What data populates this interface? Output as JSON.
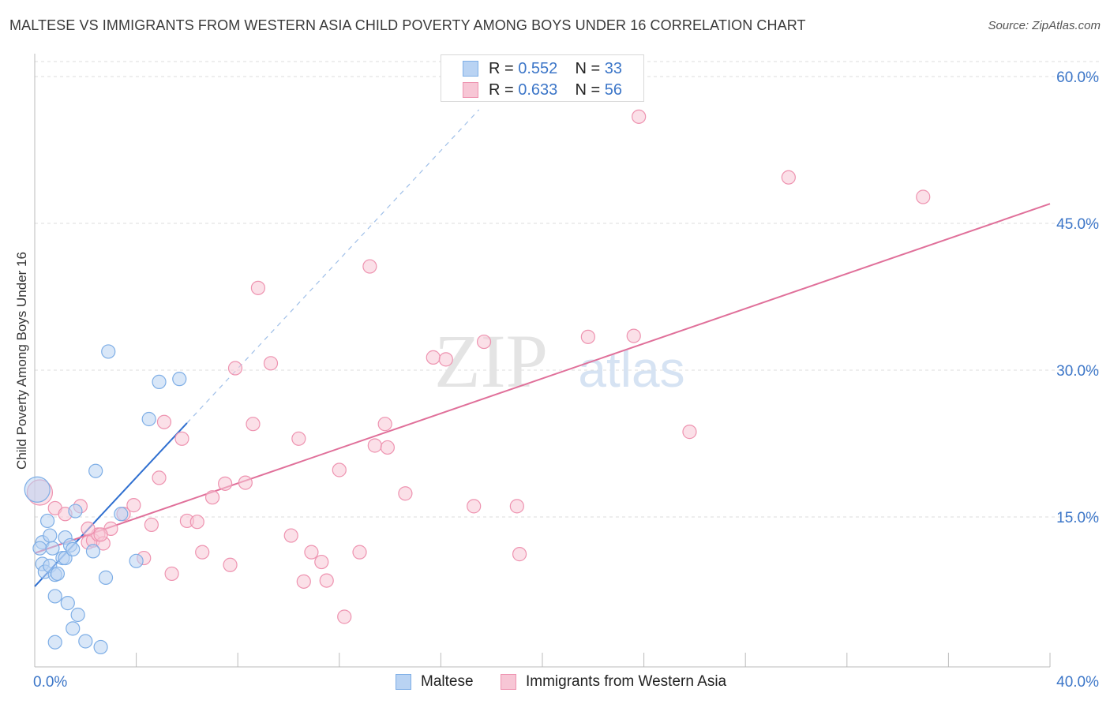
{
  "header": {
    "title": "MALTESE VS IMMIGRANTS FROM WESTERN ASIA CHILD POVERTY AMONG BOYS UNDER 16 CORRELATION CHART",
    "source": "Source: ZipAtlas.com"
  },
  "watermark": {
    "zip": "ZIP",
    "atlas": "atlas"
  },
  "legend_stats": {
    "rows": [
      {
        "r_label": "R = ",
        "r_value": "0.552",
        "n_label": "N = ",
        "n_value": "33"
      },
      {
        "r_label": "R = ",
        "r_value": "0.633",
        "n_label": "N = ",
        "n_value": "56"
      }
    ]
  },
  "legend": {
    "maltese": "Maltese",
    "western_asia": "Immigrants from Western Asia"
  },
  "colors": {
    "blue_fill": "#b9d3f3",
    "blue_stroke": "#7eaee6",
    "blue_line": "#2f6fd0",
    "pink_fill": "#f7c6d5",
    "pink_stroke": "#ee93b0",
    "pink_line": "#e0709a",
    "axis_label": "#3c76c8",
    "grid": "#dddddd"
  },
  "chart_data": {
    "type": "scatter",
    "title": "MALTESE VS IMMIGRANTS FROM WESTERN ASIA CHILD POVERTY AMONG BOYS UNDER 16 CORRELATION CHART",
    "xlabel": "",
    "ylabel": "Child Poverty Among Boys Under 16",
    "xlim": [
      0,
      40
    ],
    "ylim": [
      0,
      63
    ],
    "x_tick_labels": [
      {
        "value": 0,
        "label": "0.0%"
      },
      {
        "value": 40,
        "label": "40.0%"
      }
    ],
    "y_tick_labels": [
      {
        "value": 15,
        "label": "15.0%"
      },
      {
        "value": 30,
        "label": "30.0%"
      },
      {
        "value": 45,
        "label": "45.0%"
      },
      {
        "value": 60,
        "label": "60.0%"
      }
    ],
    "x_minor_ticks": [
      0,
      4,
      8,
      12,
      16,
      20,
      24,
      28,
      32,
      36,
      40
    ],
    "grid": true,
    "legend_position": "bottom",
    "series": [
      {
        "name": "Maltese",
        "r": 0.552,
        "n": 33,
        "trend": {
          "x0": 0,
          "y0": 7.9,
          "x1": 6.0,
          "y1": 24.6,
          "dashed_to_x": 17.5
        },
        "points": [
          {
            "x": 0.1,
            "y": 17.8,
            "big": true
          },
          {
            "x": 0.3,
            "y": 12.4
          },
          {
            "x": 0.2,
            "y": 11.8
          },
          {
            "x": 0.3,
            "y": 10.2
          },
          {
            "x": 0.4,
            "y": 9.4
          },
          {
            "x": 0.5,
            "y": 14.6
          },
          {
            "x": 0.6,
            "y": 13.1
          },
          {
            "x": 0.7,
            "y": 11.8
          },
          {
            "x": 0.6,
            "y": 10.0
          },
          {
            "x": 0.8,
            "y": 9.1
          },
          {
            "x": 0.9,
            "y": 9.2
          },
          {
            "x": 0.8,
            "y": 6.9
          },
          {
            "x": 0.8,
            "y": 2.2
          },
          {
            "x": 1.1,
            "y": 10.8
          },
          {
            "x": 1.2,
            "y": 10.8
          },
          {
            "x": 1.2,
            "y": 12.9
          },
          {
            "x": 1.3,
            "y": 6.2
          },
          {
            "x": 1.4,
            "y": 12.1
          },
          {
            "x": 1.5,
            "y": 11.7
          },
          {
            "x": 1.5,
            "y": 3.6
          },
          {
            "x": 1.7,
            "y": 5.0
          },
          {
            "x": 1.6,
            "y": 15.6
          },
          {
            "x": 2.0,
            "y": 2.3
          },
          {
            "x": 2.3,
            "y": 11.5
          },
          {
            "x": 2.4,
            "y": 19.7
          },
          {
            "x": 2.6,
            "y": 1.7
          },
          {
            "x": 2.8,
            "y": 8.8
          },
          {
            "x": 2.9,
            "y": 31.9
          },
          {
            "x": 3.4,
            "y": 15.3
          },
          {
            "x": 4.0,
            "y": 10.5
          },
          {
            "x": 4.5,
            "y": 25.0
          },
          {
            "x": 4.9,
            "y": 28.8
          },
          {
            "x": 5.7,
            "y": 29.1
          }
        ]
      },
      {
        "name": "Immigrants from Western Asia",
        "r": 0.633,
        "n": 56,
        "trend": {
          "x0": 0,
          "y0": 11.3,
          "x1": 40,
          "y1": 47.0
        },
        "points": [
          {
            "x": 0.2,
            "y": 17.5,
            "big": true
          },
          {
            "x": 0.8,
            "y": 15.9
          },
          {
            "x": 1.2,
            "y": 15.3
          },
          {
            "x": 1.8,
            "y": 16.1
          },
          {
            "x": 2.1,
            "y": 12.4
          },
          {
            "x": 2.3,
            "y": 12.6
          },
          {
            "x": 2.5,
            "y": 13.2
          },
          {
            "x": 2.7,
            "y": 12.3
          },
          {
            "x": 3.0,
            "y": 13.8
          },
          {
            "x": 3.5,
            "y": 15.3
          },
          {
            "x": 3.9,
            "y": 16.2
          },
          {
            "x": 4.3,
            "y": 10.8
          },
          {
            "x": 4.6,
            "y": 14.2
          },
          {
            "x": 4.9,
            "y": 19.0
          },
          {
            "x": 5.1,
            "y": 24.7
          },
          {
            "x": 5.4,
            "y": 9.2
          },
          {
            "x": 5.8,
            "y": 23.0
          },
          {
            "x": 6.0,
            "y": 14.6
          },
          {
            "x": 6.4,
            "y": 14.5
          },
          {
            "x": 6.6,
            "y": 11.4
          },
          {
            "x": 7.0,
            "y": 17.0
          },
          {
            "x": 7.5,
            "y": 18.4
          },
          {
            "x": 7.7,
            "y": 10.1
          },
          {
            "x": 7.9,
            "y": 30.2
          },
          {
            "x": 8.3,
            "y": 18.5
          },
          {
            "x": 8.6,
            "y": 24.5
          },
          {
            "x": 8.8,
            "y": 38.4
          },
          {
            "x": 9.3,
            "y": 30.7
          },
          {
            "x": 10.1,
            "y": 13.1
          },
          {
            "x": 10.4,
            "y": 23.0
          },
          {
            "x": 10.6,
            "y": 8.4
          },
          {
            "x": 10.9,
            "y": 11.4
          },
          {
            "x": 11.3,
            "y": 10.4
          },
          {
            "x": 11.5,
            "y": 8.5
          },
          {
            "x": 12.0,
            "y": 19.8
          },
          {
            "x": 12.2,
            "y": 4.8
          },
          {
            "x": 12.8,
            "y": 11.4
          },
          {
            "x": 13.2,
            "y": 40.6
          },
          {
            "x": 13.4,
            "y": 22.3
          },
          {
            "x": 13.8,
            "y": 24.5
          },
          {
            "x": 13.9,
            "y": 22.1
          },
          {
            "x": 14.6,
            "y": 17.4
          },
          {
            "x": 15.7,
            "y": 31.3
          },
          {
            "x": 16.2,
            "y": 31.1
          },
          {
            "x": 17.3,
            "y": 16.1
          },
          {
            "x": 17.7,
            "y": 32.9
          },
          {
            "x": 19.0,
            "y": 16.1
          },
          {
            "x": 19.1,
            "y": 11.2
          },
          {
            "x": 21.8,
            "y": 33.4
          },
          {
            "x": 23.6,
            "y": 33.5
          },
          {
            "x": 23.8,
            "y": 55.9
          },
          {
            "x": 25.8,
            "y": 23.7
          },
          {
            "x": 29.7,
            "y": 49.7
          },
          {
            "x": 35.0,
            "y": 47.7
          },
          {
            "x": 2.1,
            "y": 13.8
          },
          {
            "x": 2.6,
            "y": 13.2
          }
        ]
      }
    ]
  }
}
